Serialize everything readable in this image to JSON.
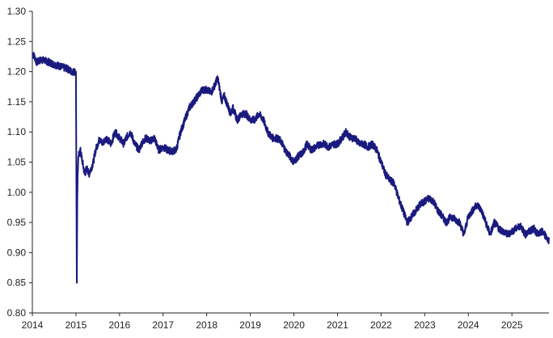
{
  "chart_data": {
    "type": "line",
    "title": "",
    "xlabel": "",
    "ylabel": "",
    "xlim": [
      2014.0,
      2025.85
    ],
    "ylim": [
      0.8,
      1.3
    ],
    "yticks": [
      "0.80",
      "0.85",
      "0.90",
      "0.95",
      "1.00",
      "1.05",
      "1.10",
      "1.15",
      "1.20",
      "1.25",
      "1.30"
    ],
    "xticks": [
      "2014",
      "2015",
      "2016",
      "2017",
      "2018",
      "2019",
      "2020",
      "2021",
      "2022",
      "2023",
      "2024",
      "2025"
    ],
    "grid": false,
    "legend": "none",
    "line_color": "#1a1a7e",
    "series": [
      {
        "x": [
          2014.0,
          2014.05,
          2014.1,
          2014.2,
          2014.3,
          2014.4,
          2014.5,
          2014.6,
          2014.7,
          2014.8,
          2014.9,
          2014.96,
          2015.0,
          2015.02,
          2015.03,
          2015.04,
          2015.06,
          2015.1,
          2015.15,
          2015.2,
          2015.25,
          2015.3,
          2015.35,
          2015.4,
          2015.45,
          2015.5,
          2015.55,
          2015.6,
          2015.7,
          2015.8,
          2015.9,
          2016.0,
          2016.1,
          2016.15,
          2016.25,
          2016.35,
          2016.45,
          2016.5,
          2016.6,
          2016.7,
          2016.8,
          2016.9,
          2017.0,
          2017.1,
          2017.2,
          2017.3,
          2017.4,
          2017.5,
          2017.55,
          2017.6,
          2017.7,
          2017.8,
          2017.9,
          2018.0,
          2018.1,
          2018.2,
          2018.25,
          2018.3,
          2018.35,
          2018.4,
          2018.5,
          2018.55,
          2018.6,
          2018.7,
          2018.8,
          2018.9,
          2019.0,
          2019.1,
          2019.2,
          2019.3,
          2019.4,
          2019.5,
          2019.6,
          2019.7,
          2019.8,
          2019.9,
          2020.0,
          2020.1,
          2020.2,
          2020.3,
          2020.4,
          2020.5,
          2020.6,
          2020.7,
          2020.8,
          2020.9,
          2021.0,
          2021.1,
          2021.2,
          2021.3,
          2021.4,
          2021.5,
          2021.6,
          2021.7,
          2021.8,
          2021.9,
          2022.0,
          2022.1,
          2022.2,
          2022.3,
          2022.4,
          2022.5,
          2022.6,
          2022.7,
          2022.8,
          2022.9,
          2023.0,
          2023.1,
          2023.2,
          2023.3,
          2023.4,
          2023.5,
          2023.6,
          2023.7,
          2023.8,
          2023.9,
          2024.0,
          2024.1,
          2024.2,
          2024.3,
          2024.4,
          2024.5,
          2024.6,
          2024.7,
          2024.8,
          2024.9,
          2025.0,
          2025.1,
          2025.2,
          2025.3,
          2025.4,
          2025.5,
          2025.6,
          2025.7,
          2025.8,
          2025.85
        ],
        "y": [
          1.23,
          1.225,
          1.215,
          1.22,
          1.218,
          1.215,
          1.212,
          1.21,
          1.207,
          1.205,
          1.2,
          1.2,
          1.2,
          0.85,
          0.98,
          1.03,
          1.06,
          1.07,
          1.05,
          1.03,
          1.04,
          1.03,
          1.04,
          1.05,
          1.07,
          1.08,
          1.09,
          1.08,
          1.09,
          1.08,
          1.1,
          1.09,
          1.08,
          1.09,
          1.1,
          1.08,
          1.07,
          1.08,
          1.09,
          1.085,
          1.09,
          1.07,
          1.075,
          1.07,
          1.068,
          1.07,
          1.1,
          1.12,
          1.13,
          1.14,
          1.15,
          1.16,
          1.17,
          1.17,
          1.165,
          1.18,
          1.19,
          1.17,
          1.15,
          1.16,
          1.14,
          1.13,
          1.14,
          1.12,
          1.13,
          1.13,
          1.12,
          1.12,
          1.13,
          1.12,
          1.1,
          1.09,
          1.09,
          1.085,
          1.07,
          1.06,
          1.05,
          1.06,
          1.065,
          1.08,
          1.07,
          1.075,
          1.08,
          1.08,
          1.075,
          1.08,
          1.08,
          1.09,
          1.1,
          1.09,
          1.09,
          1.08,
          1.08,
          1.075,
          1.08,
          1.07,
          1.05,
          1.03,
          1.02,
          1.015,
          0.99,
          0.97,
          0.95,
          0.96,
          0.97,
          0.98,
          0.985,
          0.99,
          0.985,
          0.97,
          0.96,
          0.95,
          0.96,
          0.955,
          0.95,
          0.93,
          0.96,
          0.97,
          0.98,
          0.97,
          0.95,
          0.93,
          0.95,
          0.94,
          0.935,
          0.93,
          0.935,
          0.94,
          0.945,
          0.93,
          0.935,
          0.94,
          0.93,
          0.935,
          0.925,
          0.92
        ]
      }
    ]
  }
}
